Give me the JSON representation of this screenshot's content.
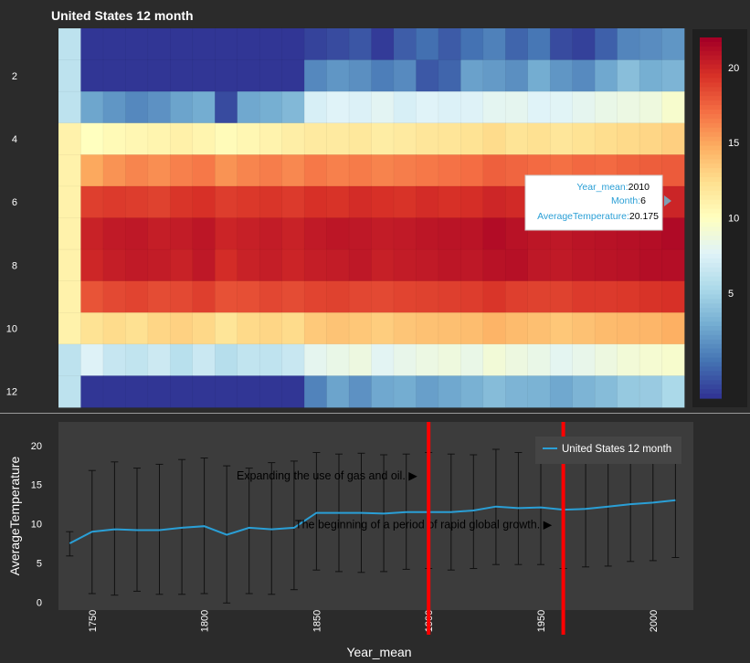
{
  "header": {
    "title": "United States 12 month"
  },
  "tooltip": {
    "rows": [
      {
        "key": "Year_mean:",
        "value": "2010"
      },
      {
        "key": "Month:",
        "value": "6"
      },
      {
        "key": "AverageTemperature:",
        "value": "20.175"
      }
    ]
  },
  "colors": {
    "background": "#2b2b2b",
    "lineplot_bg": "#3c3c3c",
    "line": "#2a9fd6",
    "vline": "#ff0000"
  },
  "chart_data": [
    {
      "type": "heatmap",
      "title": "United States 12 month",
      "xlabel": "",
      "ylabel": "",
      "x": [
        1740,
        1750,
        1760,
        1770,
        1780,
        1790,
        1800,
        1810,
        1820,
        1830,
        1840,
        1850,
        1860,
        1870,
        1880,
        1890,
        1900,
        1910,
        1920,
        1930,
        1940,
        1950,
        1960,
        1970,
        1980,
        1990,
        2000,
        2010
      ],
      "y": [
        1,
        2,
        3,
        4,
        5,
        6,
        7,
        8,
        9,
        10,
        11,
        12
      ],
      "ytick_labels": [
        "2",
        "4",
        "6",
        "8",
        "10",
        "12"
      ],
      "colorbar": {
        "ticks": [
          "20",
          "15",
          "10",
          "5"
        ],
        "range": [
          -2,
          22
        ],
        "scale": "RdYlBu_r"
      },
      "values": [
        [
          6,
          -2,
          -2,
          -2,
          -2,
          -2,
          -2,
          -2,
          -2,
          -2,
          -2,
          -1.5,
          -1.2,
          -0.8,
          -1.8,
          -0.5,
          0.2,
          -0.6,
          0.3,
          0.9,
          -0.2,
          0.5,
          -1.2,
          -1.6,
          -0.4,
          1.1,
          1.4,
          1.8
        ],
        [
          6,
          -2,
          -2,
          -2,
          -2,
          -2,
          -2,
          -2,
          -2,
          -2,
          -2,
          1.2,
          1.8,
          1.5,
          0.8,
          1.3,
          -0.7,
          -0.2,
          2.3,
          2.0,
          1.5,
          2.8,
          1.8,
          1.3,
          2.6,
          3.7,
          2.9,
          3.2
        ],
        [
          6,
          2.5,
          1.8,
          1.2,
          1.6,
          2.4,
          2.8,
          -1.2,
          2.6,
          2.9,
          3.4,
          7.2,
          7.6,
          7.4,
          7.8,
          7.2,
          7.6,
          7.4,
          7.5,
          7.9,
          8.0,
          7.6,
          7.7,
          8.0,
          8.3,
          8.5,
          8.7,
          9.4
        ],
        [
          11,
          10,
          10.4,
          10.6,
          10.8,
          11.1,
          10.8,
          10.3,
          10.6,
          10.9,
          11.3,
          11.6,
          11.6,
          11.8,
          11.4,
          11.6,
          11.9,
          12.0,
          12.2,
          12.6,
          12.1,
          12.3,
          11.9,
          12.2,
          12.5,
          12.7,
          12.9,
          13.2
        ],
        [
          11,
          15.0,
          15.8,
          16.3,
          16.0,
          16.5,
          16.8,
          15.8,
          16.3,
          16.6,
          16.2,
          16.8,
          16.5,
          16.7,
          16.4,
          16.6,
          16.8,
          17.0,
          17.2,
          17.7,
          17.5,
          17.3,
          17.1,
          17.4,
          17.3,
          17.6,
          17.8,
          17.9
        ],
        [
          11,
          19.0,
          19.2,
          19.1,
          18.9,
          19.4,
          19.6,
          19.1,
          19.3,
          19.4,
          19.2,
          19.6,
          19.5,
          19.8,
          19.6,
          19.5,
          19.8,
          19.6,
          19.7,
          20.1,
          19.9,
          19.7,
          19.7,
          19.9,
          20.0,
          20.1,
          20.2,
          20.175
        ],
        [
          11,
          20.3,
          20.7,
          20.8,
          20.5,
          20.6,
          20.9,
          20.2,
          20.4,
          20.6,
          20.3,
          20.7,
          20.9,
          20.8,
          20.6,
          20.7,
          20.9,
          21.0,
          21.0,
          21.4,
          21.1,
          20.9,
          20.8,
          21.0,
          21.1,
          21.2,
          21.3,
          21.5
        ],
        [
          11,
          20.1,
          20.5,
          20.7,
          20.6,
          20.3,
          20.8,
          19.8,
          20.3,
          20.5,
          20.2,
          20.5,
          20.6,
          20.8,
          20.4,
          20.6,
          20.7,
          20.9,
          20.8,
          21.1,
          21.2,
          20.8,
          20.7,
          20.9,
          21.0,
          21.1,
          21.3,
          21.3
        ],
        [
          11,
          18.2,
          18.6,
          18.8,
          18.5,
          18.6,
          19.0,
          18.3,
          18.4,
          18.7,
          18.5,
          18.8,
          18.9,
          18.7,
          18.6,
          18.8,
          18.9,
          19.0,
          19.1,
          19.4,
          19.0,
          18.9,
          18.9,
          19.2,
          19.2,
          19.3,
          19.5,
          19.6
        ],
        [
          11,
          12.2,
          12.6,
          12.3,
          12.9,
          13.1,
          12.8,
          12.0,
          12.7,
          12.9,
          12.6,
          13.5,
          13.8,
          13.6,
          13.3,
          13.7,
          13.9,
          14.0,
          14.1,
          14.5,
          14.2,
          14.0,
          13.6,
          13.9,
          14.2,
          14.3,
          14.4,
          14.7
        ],
        [
          6,
          7.5,
          6.4,
          6.2,
          6.7,
          5.8,
          6.6,
          5.7,
          6.2,
          6.1,
          6.5,
          8.0,
          8.3,
          8.6,
          7.8,
          8.2,
          8.5,
          8.7,
          8.3,
          9.0,
          8.6,
          8.3,
          7.9,
          8.2,
          8.6,
          9.0,
          9.2,
          9.4
        ],
        [
          6,
          -2,
          -2,
          -2,
          -2,
          -2,
          -2,
          -2,
          -2,
          -2,
          -2,
          1.0,
          2.4,
          1.6,
          2.6,
          2.8,
          2.2,
          2.6,
          3.0,
          3.6,
          3.2,
          3.1,
          2.6,
          3.2,
          3.6,
          4.3,
          4.4,
          5.2
        ]
      ]
    },
    {
      "type": "line",
      "title": "",
      "xlabel": "Year_mean",
      "ylabel": "AverageTemperature",
      "x_ticks": [
        "1750",
        "1800",
        "1850",
        "1900",
        "1950",
        "2000"
      ],
      "y_ticks": [
        "0",
        "5",
        "10",
        "15",
        "20"
      ],
      "xlim": [
        1735,
        2018
      ],
      "ylim": [
        -1,
        23
      ],
      "legend_placement": "top-right",
      "series": [
        {
          "name": "United States 12 month",
          "x": [
            1740,
            1750,
            1760,
            1770,
            1780,
            1790,
            1800,
            1810,
            1820,
            1830,
            1840,
            1850,
            1860,
            1870,
            1880,
            1890,
            1900,
            1910,
            1920,
            1930,
            1940,
            1950,
            1960,
            1970,
            1980,
            1990,
            2000,
            2010
          ],
          "values": [
            7.5,
            9.0,
            9.3,
            9.2,
            9.2,
            9.5,
            9.7,
            8.6,
            9.5,
            9.3,
            9.5,
            11.4,
            11.4,
            11.4,
            11.3,
            11.5,
            11.5,
            11.5,
            11.7,
            12.2,
            12.0,
            12.1,
            11.8,
            11.9,
            12.2,
            12.5,
            12.7,
            13.0
          ],
          "err_high": [
            9.0,
            16.8,
            17.9,
            17.1,
            17.6,
            18.2,
            18.4,
            17.4,
            17.1,
            17.8,
            18.0,
            19.1,
            18.9,
            19.0,
            18.8,
            18.9,
            19.1,
            18.9,
            18.8,
            19.5,
            19.1,
            19.2,
            19.2,
            19.4,
            19.8,
            20.0,
            20.3,
            20.6
          ],
          "err_low": [
            5.9,
            1.1,
            0.9,
            1.4,
            1.0,
            1.0,
            1.1,
            -0.1,
            1.1,
            1.0,
            1.6,
            4.1,
            3.9,
            3.8,
            3.9,
            4.2,
            4.3,
            4.1,
            4.3,
            4.8,
            4.8,
            4.8,
            4.3,
            4.5,
            4.6,
            5.2,
            5.3,
            5.7
          ]
        }
      ],
      "vlines": [
        1900,
        1960
      ],
      "annotations": [
        {
          "text": "Expanding the use of gas and oil. ▶",
          "x": 1895,
          "y": 16.1
        },
        {
          "text": "The beginning of a period of rapid global growth. ▶",
          "x": 1955,
          "y": 9.9
        }
      ]
    }
  ]
}
